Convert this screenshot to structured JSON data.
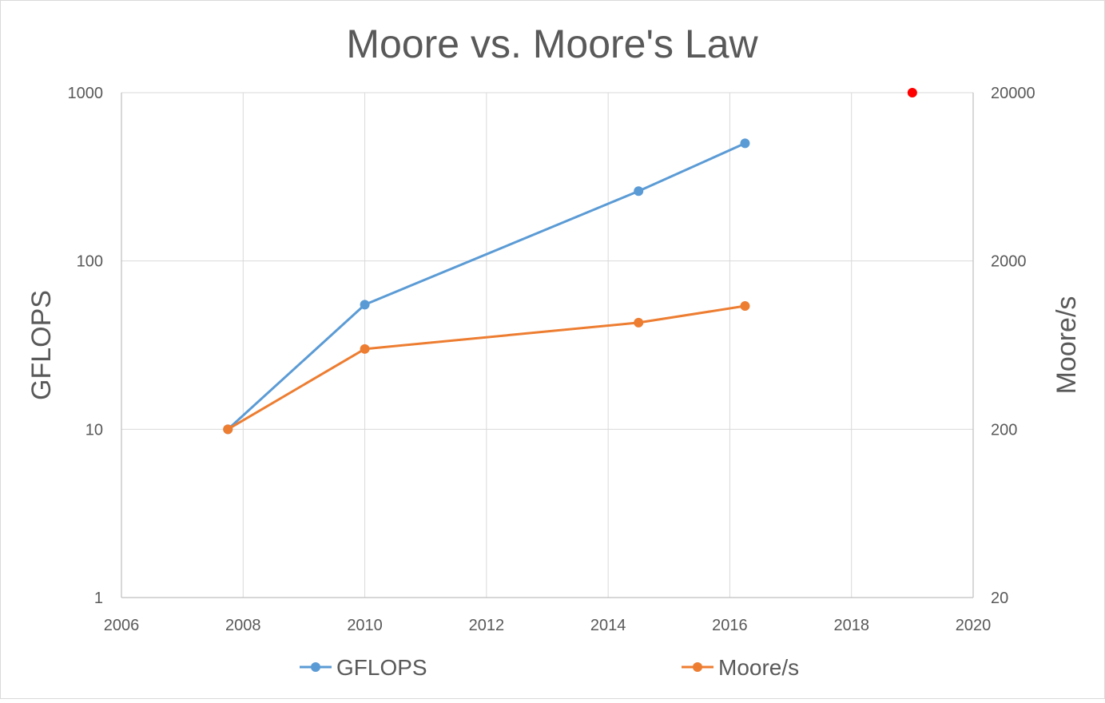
{
  "chart_data": {
    "type": "line",
    "title": "Moore vs. Moore's Law",
    "xlabel": "",
    "ylabel": "GFLOPS",
    "y2label": "Moore/s",
    "xlim": [
      2006,
      2020
    ],
    "ylim": [
      1,
      1000
    ],
    "y2lim": [
      20,
      20000
    ],
    "y_scale": "log",
    "y2_scale": "log",
    "x_ticks": [
      2006,
      2008,
      2010,
      2012,
      2014,
      2016,
      2018,
      2020
    ],
    "y_ticks": [
      1,
      10,
      100,
      1000
    ],
    "y2_ticks": [
      20,
      200,
      2000,
      20000
    ],
    "grid": true,
    "legend_position": "bottom",
    "colors": {
      "gflops": "#5b9bd5",
      "moores": "#ed7d31",
      "marker": "#ff0000"
    },
    "series": [
      {
        "name": "GFLOPS",
        "axis": "left",
        "x": [
          2007.75,
          2010,
          2014.5,
          2016.25
        ],
        "values": [
          10,
          55,
          260,
          500
        ]
      },
      {
        "name": "Moore/s",
        "axis": "right",
        "x": [
          2007.75,
          2010,
          2014.5,
          2016.25
        ],
        "values": [
          200,
          600,
          860,
          1080
        ]
      }
    ],
    "extra_points": [
      {
        "x": 2019,
        "y": 1000,
        "axis": "left"
      }
    ]
  }
}
